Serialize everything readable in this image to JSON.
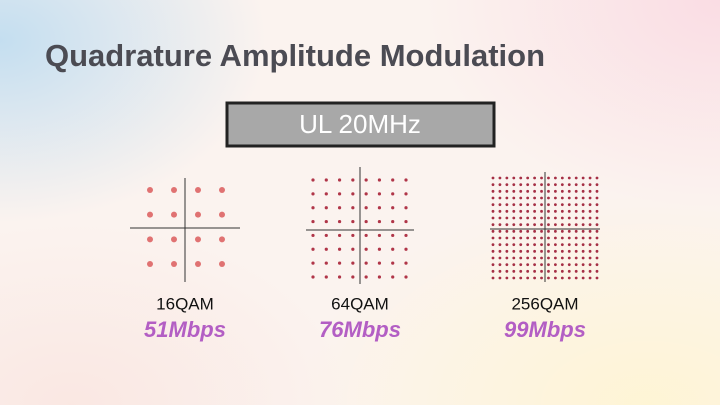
{
  "title": "Quadrature Amplitude Modulation",
  "badge": "UL 20MHz",
  "panels": [
    {
      "label": "16QAM",
      "rate": "51Mbps"
    },
    {
      "label": "64QAM",
      "rate": "76Mbps"
    },
    {
      "label": "256QAM",
      "rate": "99Mbps"
    }
  ]
}
